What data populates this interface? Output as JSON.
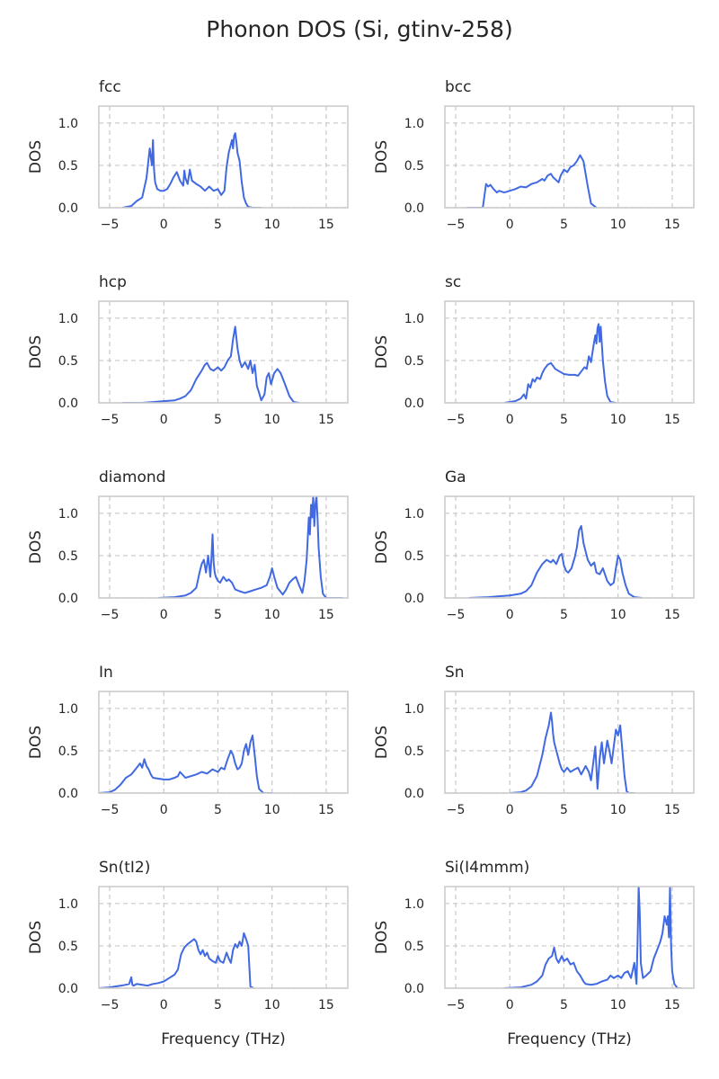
{
  "chart_data": {
    "type": "line",
    "title": "Phonon DOS (Si, gtinv-258)",
    "xlabel": "Frequency (THz)",
    "ylabel": "DOS",
    "xlim": [
      -6,
      17
    ],
    "ylim": [
      0,
      1.2
    ],
    "xticks": [
      -5,
      0,
      5,
      10,
      15
    ],
    "xtick_labels": [
      "−5",
      "0",
      "5",
      "10",
      "15"
    ],
    "yticks": [
      0.0,
      0.5,
      1.0
    ],
    "ytick_labels": [
      "0.0",
      "0.5",
      "1.0"
    ],
    "grid": true,
    "line_color": "#4169e1",
    "panels": [
      {
        "title": "fcc",
        "x": [
          -3.8,
          -3.0,
          -2.5,
          -2.0,
          -1.6,
          -1.3,
          -1.1,
          -1.0,
          -0.9,
          -0.8,
          -0.6,
          -0.3,
          0,
          0.3,
          0.6,
          0.9,
          1.2,
          1.5,
          1.8,
          1.9,
          2.0,
          2.2,
          2.4,
          2.6,
          3.0,
          3.4,
          3.8,
          4.2,
          4.6,
          5.0,
          5.3,
          5.6,
          5.8,
          6.0,
          6.2,
          6.3,
          6.4,
          6.5,
          6.6,
          6.7,
          6.8,
          7.0,
          7.2,
          7.4,
          7.6,
          7.8,
          8.2,
          9.0
        ],
        "y": [
          0,
          0.02,
          0.08,
          0.12,
          0.35,
          0.7,
          0.5,
          0.8,
          0.45,
          0.3,
          0.22,
          0.2,
          0.2,
          0.22,
          0.28,
          0.36,
          0.42,
          0.32,
          0.26,
          0.44,
          0.35,
          0.28,
          0.45,
          0.32,
          0.28,
          0.25,
          0.2,
          0.25,
          0.2,
          0.22,
          0.15,
          0.2,
          0.48,
          0.65,
          0.75,
          0.8,
          0.7,
          0.85,
          0.88,
          0.78,
          0.65,
          0.55,
          0.3,
          0.12,
          0.05,
          0.01,
          0,
          0
        ]
      },
      {
        "title": "bcc",
        "x": [
          -4.0,
          -2.5,
          -2.2,
          -2.0,
          -1.8,
          -1.5,
          -1.2,
          -1.0,
          -0.5,
          0,
          0.5,
          1.0,
          1.5,
          2.0,
          2.5,
          3.0,
          3.2,
          3.5,
          3.8,
          4.0,
          4.5,
          4.7,
          5.0,
          5.3,
          5.6,
          5.9,
          6.2,
          6.5,
          6.8,
          7.0,
          7.2,
          7.5,
          8.0
        ],
        "y": [
          0,
          0,
          0.28,
          0.25,
          0.27,
          0.22,
          0.18,
          0.2,
          0.18,
          0.2,
          0.22,
          0.25,
          0.24,
          0.28,
          0.3,
          0.34,
          0.32,
          0.38,
          0.4,
          0.36,
          0.3,
          0.38,
          0.45,
          0.42,
          0.48,
          0.5,
          0.55,
          0.62,
          0.55,
          0.4,
          0.25,
          0.05,
          0
        ]
      },
      {
        "title": "hcp",
        "x": [
          -3.8,
          -2.0,
          -1.0,
          0,
          1.0,
          1.5,
          2.0,
          2.5,
          3.0,
          3.5,
          3.8,
          4.0,
          4.3,
          4.6,
          5.0,
          5.3,
          5.6,
          5.9,
          6.2,
          6.4,
          6.6,
          6.8,
          7.0,
          7.2,
          7.5,
          7.8,
          8.0,
          8.2,
          8.4,
          8.6,
          8.8,
          9.0,
          9.3,
          9.5,
          9.7,
          9.9,
          10.2,
          10.5,
          10.8,
          11.2,
          11.6,
          12.0,
          12.5
        ],
        "y": [
          0,
          0,
          0.01,
          0.02,
          0.03,
          0.05,
          0.08,
          0.15,
          0.28,
          0.38,
          0.45,
          0.47,
          0.4,
          0.38,
          0.42,
          0.38,
          0.42,
          0.5,
          0.55,
          0.75,
          0.9,
          0.65,
          0.5,
          0.42,
          0.48,
          0.4,
          0.5,
          0.35,
          0.45,
          0.2,
          0.12,
          0.03,
          0.1,
          0.3,
          0.35,
          0.22,
          0.35,
          0.4,
          0.35,
          0.22,
          0.08,
          0.01,
          0
        ]
      },
      {
        "title": "sc",
        "x": [
          -0.5,
          0.5,
          1.0,
          1.3,
          1.5,
          1.7,
          1.9,
          2.1,
          2.3,
          2.5,
          2.8,
          3.0,
          3.2,
          3.5,
          3.8,
          4.2,
          4.6,
          5.0,
          5.5,
          6.0,
          6.3,
          6.6,
          6.9,
          7.1,
          7.3,
          7.5,
          7.7,
          7.9,
          8.0,
          8.1,
          8.2,
          8.3,
          8.4,
          8.6,
          8.8,
          9.0,
          9.3,
          9.8
        ],
        "y": [
          0,
          0.02,
          0.05,
          0.1,
          0.05,
          0.22,
          0.18,
          0.28,
          0.25,
          0.3,
          0.28,
          0.35,
          0.4,
          0.45,
          0.47,
          0.4,
          0.37,
          0.34,
          0.33,
          0.33,
          0.32,
          0.37,
          0.42,
          0.4,
          0.55,
          0.48,
          0.65,
          0.8,
          0.7,
          0.88,
          0.93,
          0.72,
          0.9,
          0.5,
          0.25,
          0.08,
          0.01,
          0
        ]
      },
      {
        "title": "diamond",
        "x": [
          -0.5,
          1.0,
          2.0,
          2.5,
          3.0,
          3.3,
          3.5,
          3.7,
          3.9,
          4.1,
          4.2,
          4.3,
          4.4,
          4.5,
          4.6,
          4.7,
          4.8,
          5.0,
          5.2,
          5.5,
          5.8,
          6.0,
          6.3,
          6.6,
          7.0,
          7.5,
          8.0,
          8.5,
          9.0,
          9.5,
          9.8,
          10.0,
          10.2,
          10.5,
          11.0,
          11.3,
          11.6,
          11.9,
          12.2,
          12.5,
          12.8,
          13.0,
          13.2,
          13.4,
          13.5,
          13.6,
          13.7,
          13.8,
          13.9,
          14.0,
          14.1,
          14.2,
          14.3,
          14.5,
          14.7,
          15.0,
          15.5,
          16.5
        ],
        "y": [
          0,
          0.01,
          0.03,
          0.06,
          0.12,
          0.3,
          0.4,
          0.45,
          0.3,
          0.5,
          0.38,
          0.25,
          0.48,
          0.75,
          0.42,
          0.3,
          0.25,
          0.2,
          0.18,
          0.25,
          0.2,
          0.22,
          0.18,
          0.1,
          0.08,
          0.06,
          0.08,
          0.1,
          0.12,
          0.15,
          0.25,
          0.35,
          0.25,
          0.12,
          0.04,
          0.1,
          0.18,
          0.22,
          0.25,
          0.15,
          0.06,
          0.2,
          0.45,
          0.95,
          0.75,
          1.1,
          0.95,
          1.2,
          0.85,
          1.1,
          1.2,
          0.95,
          0.6,
          0.25,
          0.05,
          0,
          0,
          0
        ]
      },
      {
        "title": "Ga",
        "x": [
          -3.8,
          -2.0,
          -1.0,
          0,
          1.0,
          1.5,
          2.0,
          2.5,
          3.0,
          3.4,
          3.8,
          4.0,
          4.3,
          4.6,
          4.8,
          5.0,
          5.2,
          5.4,
          5.7,
          6.0,
          6.2,
          6.4,
          6.6,
          6.8,
          7.0,
          7.2,
          7.5,
          7.8,
          8.0,
          8.3,
          8.6,
          9.0,
          9.3,
          9.6,
          9.8,
          10.0,
          10.2,
          10.4,
          10.7,
          11.0,
          11.5,
          12.2
        ],
        "y": [
          0,
          0.01,
          0.02,
          0.03,
          0.05,
          0.08,
          0.15,
          0.3,
          0.4,
          0.45,
          0.42,
          0.45,
          0.4,
          0.5,
          0.52,
          0.38,
          0.32,
          0.3,
          0.35,
          0.48,
          0.6,
          0.8,
          0.85,
          0.65,
          0.55,
          0.45,
          0.38,
          0.42,
          0.3,
          0.28,
          0.35,
          0.2,
          0.15,
          0.18,
          0.35,
          0.5,
          0.45,
          0.3,
          0.15,
          0.05,
          0.01,
          0
        ]
      },
      {
        "title": "In",
        "x": [
          -6.0,
          -5.0,
          -4.5,
          -4.0,
          -3.5,
          -3.0,
          -2.5,
          -2.2,
          -2.0,
          -1.8,
          -1.6,
          -1.4,
          -1.2,
          -1.0,
          -0.5,
          0,
          0.5,
          1.0,
          1.3,
          1.5,
          2.0,
          2.5,
          3.0,
          3.5,
          4.0,
          4.5,
          5.0,
          5.3,
          5.6,
          5.9,
          6.2,
          6.4,
          6.6,
          6.8,
          7.0,
          7.2,
          7.4,
          7.6,
          7.8,
          8.0,
          8.2,
          8.4,
          8.6,
          8.8,
          9.2,
          10.0
        ],
        "y": [
          0,
          0.01,
          0.04,
          0.1,
          0.18,
          0.22,
          0.3,
          0.35,
          0.3,
          0.4,
          0.32,
          0.28,
          0.22,
          0.18,
          0.17,
          0.16,
          0.16,
          0.18,
          0.2,
          0.25,
          0.18,
          0.2,
          0.22,
          0.25,
          0.23,
          0.28,
          0.25,
          0.3,
          0.28,
          0.4,
          0.5,
          0.45,
          0.35,
          0.28,
          0.3,
          0.35,
          0.5,
          0.58,
          0.45,
          0.6,
          0.68,
          0.45,
          0.2,
          0.05,
          0,
          0
        ]
      },
      {
        "title": "Sn",
        "x": [
          0,
          1.0,
          1.5,
          2.0,
          2.5,
          3.0,
          3.3,
          3.6,
          3.8,
          3.9,
          4.0,
          4.1,
          4.2,
          4.4,
          4.6,
          4.8,
          5.0,
          5.3,
          5.6,
          6.0,
          6.3,
          6.6,
          7.0,
          7.3,
          7.5,
          7.7,
          7.9,
          8.1,
          8.3,
          8.5,
          8.7,
          9.0,
          9.2,
          9.4,
          9.6,
          9.8,
          10.0,
          10.2,
          10.4,
          10.6,
          10.8,
          11.0,
          11.5
        ],
        "y": [
          0,
          0.01,
          0.03,
          0.08,
          0.2,
          0.45,
          0.65,
          0.8,
          0.95,
          0.85,
          0.7,
          0.6,
          0.55,
          0.45,
          0.35,
          0.28,
          0.25,
          0.3,
          0.25,
          0.28,
          0.3,
          0.22,
          0.32,
          0.25,
          0.15,
          0.35,
          0.55,
          0.05,
          0.4,
          0.6,
          0.35,
          0.62,
          0.5,
          0.35,
          0.55,
          0.75,
          0.68,
          0.8,
          0.5,
          0.2,
          0.02,
          0,
          0
        ]
      },
      {
        "title": "Sn(tI2)",
        "x": [
          -6.0,
          -5.0,
          -4.5,
          -4.0,
          -3.5,
          -3.2,
          -3.0,
          -2.9,
          -2.8,
          -2.5,
          -2.0,
          -1.5,
          -1.0,
          -0.5,
          0,
          0.5,
          1.0,
          1.3,
          1.6,
          1.9,
          2.2,
          2.5,
          2.8,
          3.0,
          3.2,
          3.4,
          3.6,
          3.8,
          4.0,
          4.2,
          4.5,
          4.8,
          5.0,
          5.2,
          5.5,
          5.8,
          6.0,
          6.2,
          6.4,
          6.6,
          6.8,
          7.0,
          7.2,
          7.4,
          7.6,
          7.8,
          8.0,
          8.3
        ],
        "y": [
          0,
          0.01,
          0.02,
          0.03,
          0.04,
          0.05,
          0.13,
          0.04,
          0.03,
          0.05,
          0.04,
          0.03,
          0.05,
          0.06,
          0.08,
          0.12,
          0.16,
          0.22,
          0.4,
          0.48,
          0.52,
          0.55,
          0.58,
          0.55,
          0.45,
          0.4,
          0.45,
          0.38,
          0.42,
          0.35,
          0.32,
          0.3,
          0.38,
          0.32,
          0.3,
          0.42,
          0.35,
          0.3,
          0.45,
          0.52,
          0.48,
          0.55,
          0.5,
          0.65,
          0.58,
          0.5,
          0.02,
          0
        ]
      },
      {
        "title": "Si(I4mmm)",
        "x": [
          -0.5,
          1.0,
          2.0,
          2.5,
          3.0,
          3.3,
          3.6,
          3.9,
          4.1,
          4.3,
          4.5,
          4.8,
          5.0,
          5.3,
          5.6,
          5.9,
          6.2,
          6.5,
          6.8,
          7.0,
          7.5,
          8.0,
          8.5,
          9.0,
          9.3,
          9.6,
          10.0,
          10.3,
          10.6,
          10.9,
          11.2,
          11.5,
          11.7,
          11.8,
          11.9,
          12.0,
          12.1,
          12.3,
          12.6,
          13.0,
          13.3,
          13.6,
          13.9,
          14.1,
          14.3,
          14.5,
          14.6,
          14.7,
          14.8,
          14.9,
          15.0,
          15.2,
          15.5,
          15.8
        ],
        "y": [
          0,
          0.01,
          0.04,
          0.08,
          0.15,
          0.28,
          0.35,
          0.38,
          0.48,
          0.35,
          0.3,
          0.38,
          0.32,
          0.35,
          0.28,
          0.3,
          0.2,
          0.15,
          0.08,
          0.05,
          0.04,
          0.05,
          0.08,
          0.1,
          0.15,
          0.12,
          0.15,
          0.12,
          0.18,
          0.2,
          0.12,
          0.3,
          0.05,
          0.55,
          1.2,
          0.9,
          0.3,
          0.12,
          0.15,
          0.2,
          0.35,
          0.45,
          0.55,
          0.65,
          0.85,
          0.75,
          0.85,
          0.6,
          1.2,
          0.5,
          0.2,
          0.05,
          0,
          0
        ]
      }
    ]
  }
}
